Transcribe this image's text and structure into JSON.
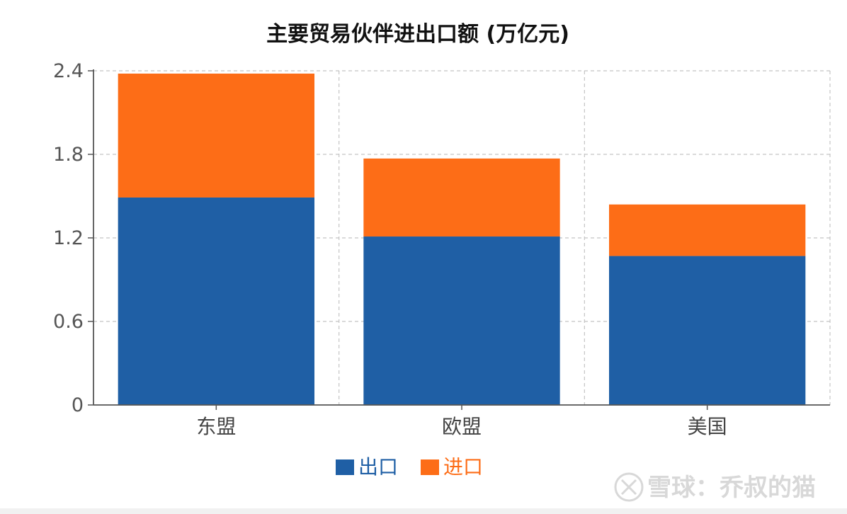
{
  "chart_data": {
    "type": "bar",
    "stacked": true,
    "title": "主要贸易伙伴进出口额 (万亿元)",
    "categories": [
      "东盟",
      "欧盟",
      "美国"
    ],
    "series": [
      {
        "name": "出口",
        "values": [
          1.49,
          1.21,
          1.07
        ],
        "color": "#1f5fa5"
      },
      {
        "name": "进口",
        "values": [
          0.89,
          0.56,
          0.37
        ],
        "color": "#fd6d17"
      }
    ],
    "ylim": [
      0,
      2.4
    ],
    "yticks": [
      0,
      0.6,
      1.2,
      1.8,
      2.4
    ],
    "ytick_labels": [
      "0",
      "0.6",
      "1.2",
      "1.8",
      "2.4"
    ],
    "grid": true,
    "legend_position": "bottom-center"
  },
  "watermark": {
    "text": "雪球：乔叔的猫",
    "icon": "xueqiu-logo-icon"
  }
}
